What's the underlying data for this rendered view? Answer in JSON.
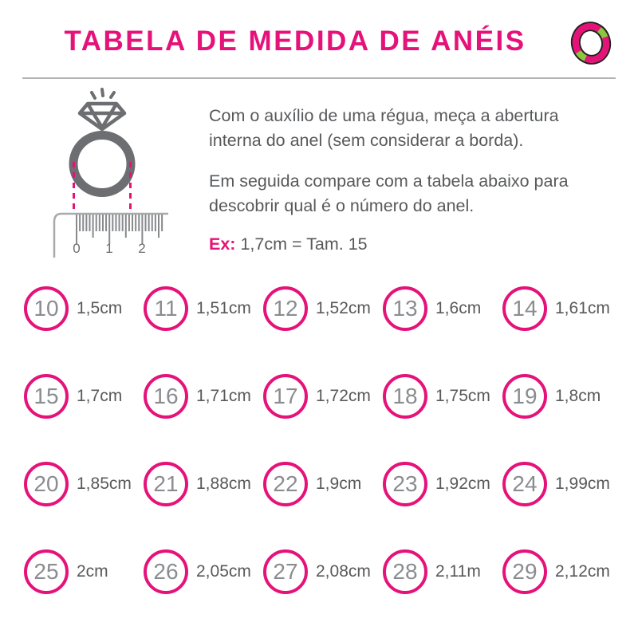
{
  "colors": {
    "pink": "#E5127A",
    "green": "#8CC63E",
    "outline": "#231F20",
    "dark_gray": "#6D6E71",
    "text_gray": "#58595B",
    "number_gray": "#8A8C8F",
    "ruler_line": "#A7A9AC",
    "ruler_tick": "#87898C",
    "divider": "#B3B3B5"
  },
  "header": {
    "title": "TABELA DE MEDIDA DE ANÉIS"
  },
  "instructions": {
    "paragraph1": "Com o auxílio de uma régua, meça a abertura interna do anel (sem considerar a borda).",
    "paragraph2": "Em seguida compare com a tabela abaixo para descobrir qual é o número do anel.",
    "example_label": "Ex:",
    "example_value": "1,7cm = Tam. 15"
  },
  "ruler": {
    "labels": [
      "0",
      "1",
      "2"
    ]
  },
  "sizes": [
    {
      "number": "10",
      "measure": "1,5cm"
    },
    {
      "number": "11",
      "measure": "1,51cm"
    },
    {
      "number": "12",
      "measure": "1,52cm"
    },
    {
      "number": "13",
      "measure": "1,6cm"
    },
    {
      "number": "14",
      "measure": "1,61cm"
    },
    {
      "number": "15",
      "measure": "1,7cm"
    },
    {
      "number": "16",
      "measure": "1,71cm"
    },
    {
      "number": "17",
      "measure": "1,72cm"
    },
    {
      "number": "18",
      "measure": "1,75cm"
    },
    {
      "number": "19",
      "measure": "1,8cm"
    },
    {
      "number": "20",
      "measure": "1,85cm"
    },
    {
      "number": "21",
      "measure": "1,88cm"
    },
    {
      "number": "22",
      "measure": "1,9cm"
    },
    {
      "number": "23",
      "measure": "1,92cm"
    },
    {
      "number": "24",
      "measure": "1,99cm"
    },
    {
      "number": "25",
      "measure": "2cm"
    },
    {
      "number": "26",
      "measure": "2,05cm"
    },
    {
      "number": "27",
      "measure": "2,08cm"
    },
    {
      "number": "28",
      "measure": "2,11m"
    },
    {
      "number": "29",
      "measure": "2,12cm"
    }
  ]
}
